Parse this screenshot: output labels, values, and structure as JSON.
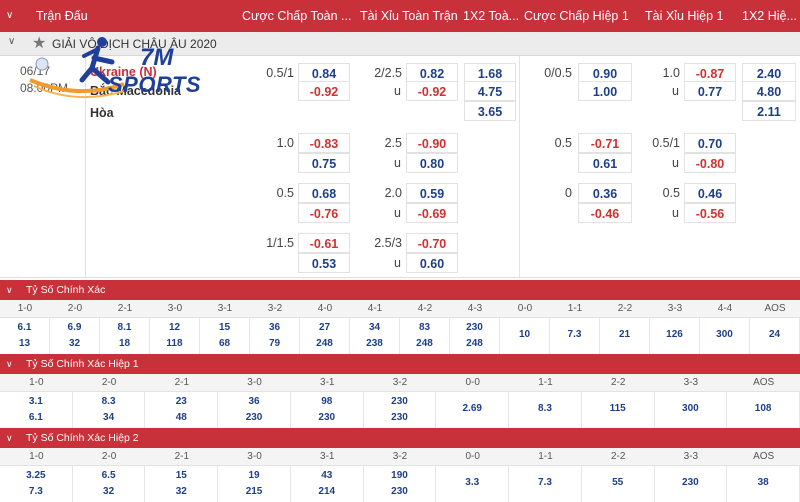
{
  "header": {
    "match_col": "Trận Đấu",
    "ft_handicap": "Cược Chấp Toàn ...",
    "ft_overunder": "Tài Xỉu Toàn Trận",
    "ft_1x2": "1X2 Toà...",
    "h1_handicap": "Cược Chấp Hiệp 1",
    "h1_overunder": "Tài Xỉu Hiệp 1",
    "h1_1x2": "1X2 Hiệ..."
  },
  "league": {
    "name": "GIẢI VÔ ĐỊCH CHÂU ÂU 2020"
  },
  "match": {
    "date": "06/17",
    "time": "08:00PM",
    "home": "Ukraine (N)",
    "away": "Bắc Macedonia",
    "draw": "Hòa",
    "ft_1x2": [
      "1.68",
      "4.75",
      "3.65"
    ],
    "h1_1x2": [
      "2.40",
      "4.80",
      "2.11"
    ],
    "u_label": "u",
    "lines": [
      {
        "ft_hdp": "0.5/1",
        "ft_hdp_home": "0.84",
        "ft_hdp_away": "-0.92",
        "ft_ou": "2/2.5",
        "ft_ou_over": "0.82",
        "ft_ou_under": "-0.92",
        "h1_hdp": "0/0.5",
        "h1_hdp_home": "0.90",
        "h1_hdp_away": "1.00",
        "h1_ou": "1.0",
        "h1_ou_over": "-0.87",
        "h1_ou_under": "0.77"
      },
      {
        "ft_hdp": "1.0",
        "ft_hdp_home": "-0.83",
        "ft_hdp_away": "0.75",
        "ft_ou": "2.5",
        "ft_ou_over": "-0.90",
        "ft_ou_under": "0.80",
        "h1_hdp": "0.5",
        "h1_hdp_home": "-0.71",
        "h1_hdp_away": "0.61",
        "h1_ou": "0.5/1",
        "h1_ou_over": "0.70",
        "h1_ou_under": "-0.80"
      },
      {
        "ft_hdp": "0.5",
        "ft_hdp_home": "0.68",
        "ft_hdp_away": "-0.76",
        "ft_ou": "2.0",
        "ft_ou_over": "0.59",
        "ft_ou_under": "-0.69",
        "h1_hdp": "0",
        "h1_hdp_home": "0.36",
        "h1_hdp_away": "-0.46",
        "h1_ou": "0.5",
        "h1_ou_over": "0.46",
        "h1_ou_under": "-0.56"
      },
      {
        "ft_hdp": "1/1.5",
        "ft_hdp_home": "-0.61",
        "ft_hdp_away": "0.53",
        "ft_ou": "2.5/3",
        "ft_ou_over": "-0.70",
        "ft_ou_under": "0.60"
      }
    ]
  },
  "logo": {
    "seven": "7M",
    "sports": "SPORTS"
  },
  "sections": [
    {
      "title": "Tỷ Số Chính Xác",
      "cols": [
        "1-0",
        "2-0",
        "2-1",
        "3-0",
        "3-1",
        "3-2",
        "4-0",
        "4-1",
        "4-2",
        "4-3",
        "0-0",
        "1-1",
        "2-2",
        "3-3",
        "4-4",
        "AOS"
      ],
      "rows": [
        [
          "6.1",
          "6.9",
          "8.1",
          "12",
          "15",
          "36",
          "27",
          "34",
          "83",
          "230",
          "10",
          "7.3",
          "21",
          "126",
          "300",
          "24"
        ],
        [
          "13",
          "32",
          "18",
          "118",
          "68",
          "79",
          "248",
          "238",
          "248",
          "248",
          "",
          "",
          "",
          "",
          "",
          ""
        ]
      ]
    },
    {
      "title": "Tỷ Số Chính Xác Hiệp 1",
      "cols": [
        "1-0",
        "2-0",
        "2-1",
        "3-0",
        "3-1",
        "3-2",
        "0-0",
        "1-1",
        "2-2",
        "3-3",
        "AOS"
      ],
      "rows": [
        [
          "3.1",
          "8.3",
          "23",
          "36",
          "98",
          "230",
          "2.69",
          "8.3",
          "115",
          "300",
          "108"
        ],
        [
          "6.1",
          "34",
          "48",
          "230",
          "230",
          "230",
          "",
          "",
          "",
          "",
          ""
        ]
      ]
    },
    {
      "title": "Tỷ Số Chính Xác Hiệp 2",
      "cols": [
        "1-0",
        "2-0",
        "2-1",
        "3-0",
        "3-1",
        "3-2",
        "0-0",
        "1-1",
        "2-2",
        "3-3",
        "AOS"
      ],
      "rows": [
        [
          "3.25",
          "6.5",
          "15",
          "19",
          "43",
          "190",
          "3.3",
          "7.3",
          "55",
          "230",
          "38"
        ],
        [
          "7.3",
          "32",
          "32",
          "215",
          "214",
          "230",
          "",
          "",
          "",
          "",
          ""
        ]
      ]
    }
  ]
}
